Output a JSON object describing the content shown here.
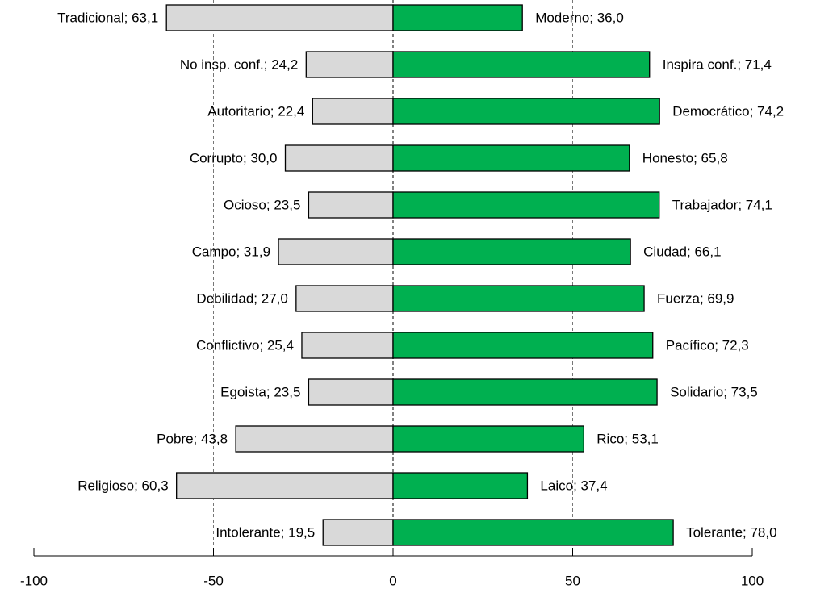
{
  "chart_data": {
    "type": "diverging-bar",
    "series": [
      {
        "color": "#d9d9d9",
        "values": [
          -63.1,
          -24.2,
          -22.4,
          -30.0,
          -23.5,
          -31.9,
          -27.0,
          -25.4,
          -23.5,
          -43.8,
          -60.3,
          -19.5
        ],
        "value_labels": [
          "Tradicional; 63,1",
          "No insp. conf.; 24,2",
          "Autoritario; 22,4",
          "Corrupto; 30,0",
          "Ocioso; 23,5",
          "Campo; 31,9",
          "Debilidad; 27,0",
          "Conflictivo; 25,4",
          "Egoista; 23,5",
          "Pobre; 43,8",
          "Religioso; 60,3",
          "Intolerante; 19,5"
        ]
      },
      {
        "color": "#00b050",
        "values": [
          36.0,
          71.4,
          74.2,
          65.8,
          74.1,
          66.1,
          69.9,
          72.3,
          73.5,
          53.1,
          37.4,
          78.0
        ],
        "value_labels": [
          "Moderno; 36,0",
          "Inspira conf.; 71,4",
          "Democrático; 74,2",
          "Honesto; 65,8",
          "Trabajador; 74,1",
          "Ciudad; 66,1",
          "Fuerza; 69,9",
          "Pacífico; 72,3",
          "Solidario; 73,5",
          "Rico; 53,1",
          "Laico; 37,4",
          "Tolerante; 78,0"
        ]
      }
    ],
    "xlim": [
      -100,
      100
    ],
    "xticks": [
      -100,
      -50,
      0,
      50,
      100
    ],
    "grid": true
  }
}
